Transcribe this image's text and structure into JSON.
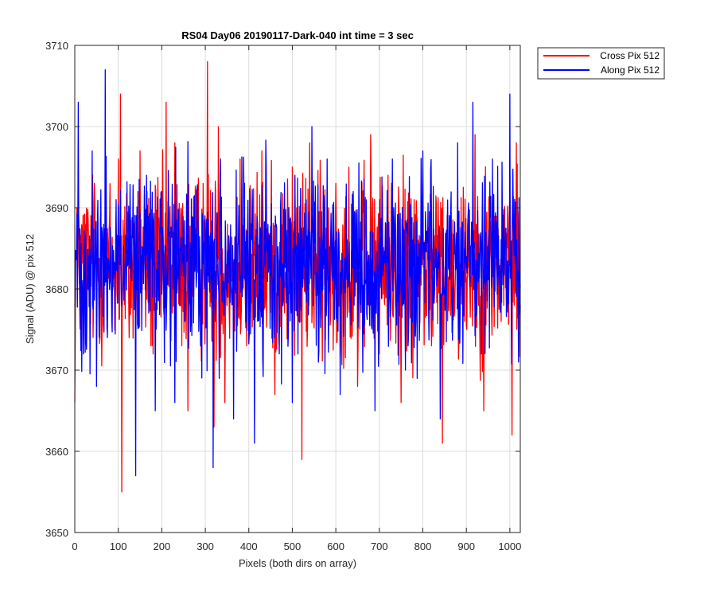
{
  "chart_data": {
    "type": "line",
    "title": "RS04 Day06 20190117-Dark-040 int time = 3 sec",
    "xlabel": "Pixels (both dirs on array)",
    "ylabel": "Signal (ADU) @ pix 512",
    "xlim": [
      0,
      1024
    ],
    "ylim": [
      3650,
      3710
    ],
    "xticks": [
      "0",
      "100",
      "200",
      "300",
      "400",
      "500",
      "600",
      "700",
      "800",
      "900",
      "1000"
    ],
    "yticks": [
      "3650",
      "3660",
      "3670",
      "3680",
      "3690",
      "3700",
      "3710"
    ],
    "grid": true,
    "legend_position": "outside-top-right",
    "series": [
      {
        "name": "Cross Pix 512",
        "color": "#ff0000",
        "mean": 3683,
        "noise_min": 3655,
        "noise_max": 3708,
        "x": [
          0,
          5,
          20,
          45,
          60,
          100,
          105,
          108,
          125,
          150,
          180,
          210,
          230,
          260,
          295,
          305,
          320,
          330,
          345,
          380,
          395,
          430,
          460,
          500,
          522,
          540,
          560,
          600,
          630,
          650,
          680,
          700,
          720,
          750,
          780,
          820,
          845,
          880,
          920,
          940,
          980,
          1000,
          1005,
          1015,
          1024
        ],
        "values": [
          3666,
          3690,
          3672,
          3693,
          3688,
          3696,
          3704,
          3655,
          3674,
          3697,
          3672,
          3703,
          3698,
          3665,
          3693,
          3708,
          3663,
          3700,
          3666,
          3696,
          3673,
          3697,
          3667,
          3695,
          3659,
          3698,
          3671,
          3693,
          3695,
          3668,
          3699,
          3672,
          3694,
          3666,
          3691,
          3673,
          3661,
          3694,
          3699,
          3665,
          3676,
          3694,
          3662,
          3698,
          3678
        ]
      },
      {
        "name": "Along Pix 512",
        "color": "#0000ff",
        "mean": 3683,
        "noise_min": 3657,
        "noise_max": 3707,
        "x": [
          0,
          8,
          20,
          40,
          50,
          70,
          95,
          140,
          165,
          185,
          230,
          290,
          318,
          335,
          365,
          413,
          440,
          470,
          500,
          545,
          560,
          580,
          610,
          640,
          690,
          730,
          760,
          800,
          840,
          880,
          915,
          935,
          960,
          1000,
          1020
        ],
        "values": [
          3678,
          3703,
          3672,
          3697,
          3668,
          3707,
          3691,
          3657,
          3694,
          3665,
          3666,
          3676,
          3658,
          3696,
          3664,
          3661,
          3695,
          3672,
          3666,
          3700,
          3671,
          3696,
          3667,
          3692,
          3665,
          3696,
          3670,
          3697,
          3664,
          3698,
          3703,
          3672,
          3696,
          3704,
          3671
        ]
      }
    ]
  }
}
